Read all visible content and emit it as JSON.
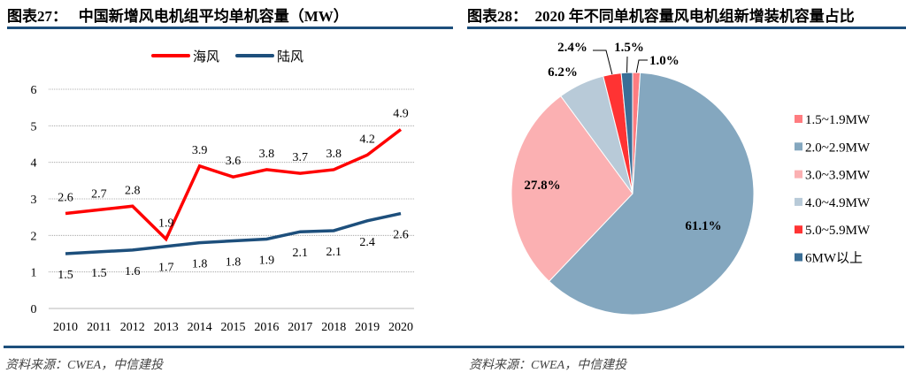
{
  "left": {
    "title": "图表27：   中国新增风电机组平均单机容量（MW）",
    "source": "资料来源：CWEA，中信建投"
  },
  "right": {
    "title": "图表28：  2020 年不同单机容量风电机组新增装机容量占比",
    "source": "资料来源：CWEA，中信建投"
  },
  "chart_data": [
    {
      "type": "line",
      "title": "中国新增风电机组平均单机容量（MW）",
      "x": [
        "2010",
        "2011",
        "2012",
        "2013",
        "2014",
        "2015",
        "2016",
        "2017",
        "2018",
        "2019",
        "2020"
      ],
      "ylim": [
        0,
        6
      ],
      "yticks": [
        0,
        1,
        2,
        3,
        4,
        5,
        6
      ],
      "grid": true,
      "legend_position": "top",
      "series": [
        {
          "name": "海风",
          "color": "#ff0000",
          "values": [
            2.6,
            2.7,
            2.8,
            1.9,
            3.9,
            3.6,
            3.8,
            3.7,
            3.8,
            4.2,
            4.9
          ],
          "labels": [
            "2.6",
            "2.7",
            "2.8",
            "1.9",
            "3.9",
            "3.6",
            "3.8",
            "3.7",
            "3.8",
            "4.2",
            "4.9"
          ]
        },
        {
          "name": "陆风",
          "color": "#1d4f7c",
          "values": [
            1.5,
            1.55,
            1.6,
            1.7,
            1.8,
            1.85,
            1.9,
            2.1,
            2.13,
            2.4,
            2.6
          ],
          "labels": [
            "1.5",
            "1.5",
            "1.6",
            "1.7",
            "1.8",
            "1.8",
            "1.9",
            "2.1",
            "2.1",
            "2.4",
            "2.6"
          ]
        }
      ]
    },
    {
      "type": "pie",
      "title": "2020 年不同单机容量风电机组新增装机容量占比",
      "legend_position": "right",
      "slices": [
        {
          "name": "1.5~1.9MW",
          "value": 1.0,
          "label": "1.0%",
          "color": "#ff7c80"
        },
        {
          "name": "2.0~2.9MW",
          "value": 61.1,
          "label": "61.1%",
          "color": "#84a7bf"
        },
        {
          "name": "3.0~3.9MW",
          "value": 27.8,
          "label": "27.8%",
          "color": "#fbb0b2"
        },
        {
          "name": "4.0~4.9MW",
          "value": 6.2,
          "label": "6.2%",
          "color": "#b8cad8"
        },
        {
          "name": "5.0~5.9MW",
          "value": 2.4,
          "label": "2.4%",
          "color": "#ff3333"
        },
        {
          "name": "6MW以上",
          "value": 1.5,
          "label": "1.5%",
          "color": "#3a6e96"
        }
      ]
    }
  ]
}
